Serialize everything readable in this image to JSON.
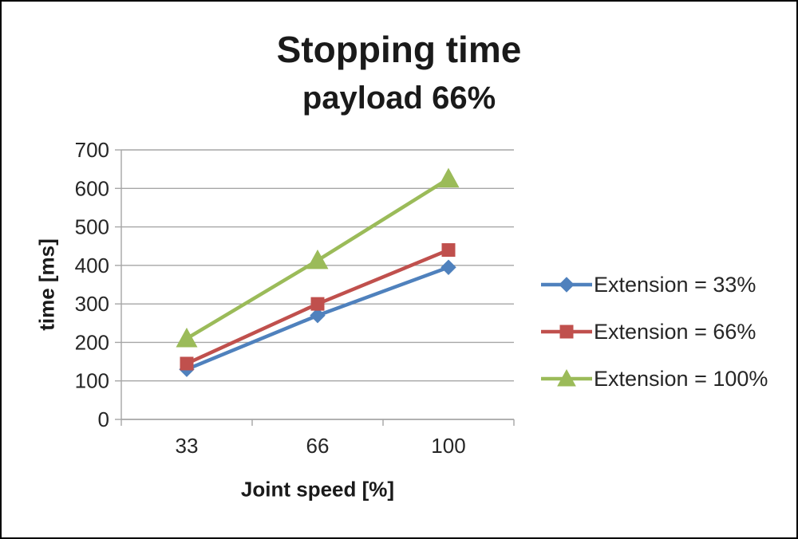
{
  "chart_data": {
    "type": "line",
    "title": "Stopping time",
    "subtitle": "payload 66%",
    "xlabel": "Joint speed [%]",
    "ylabel": "time [ms]",
    "categories": [
      "33",
      "66",
      "100"
    ],
    "ylim": [
      0,
      700
    ],
    "ytick_step": 100,
    "grid": true,
    "legend_position": "right",
    "axis_color": "#a6a6a6",
    "text_color": "#262626",
    "series": [
      {
        "name": "Extension = 33%",
        "color": "#4f81bd",
        "marker": "diamond",
        "values": [
          130,
          270,
          395
        ]
      },
      {
        "name": "Extension = 66%",
        "color": "#c0504d",
        "marker": "square",
        "values": [
          145,
          300,
          440
        ]
      },
      {
        "name": "Extension = 100%",
        "color": "#9bbb59",
        "marker": "triangle",
        "values": [
          210,
          413,
          625
        ]
      }
    ]
  }
}
